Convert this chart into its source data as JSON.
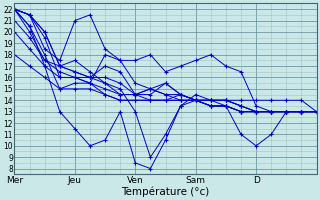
{
  "bg_color": "#cbe8e8",
  "grid_color": "#a0b8b8",
  "line_color": "#0000cc",
  "xlabel": "Température (°c)",
  "ylim": [
    7.5,
    22.5
  ],
  "yticks": [
    8,
    9,
    10,
    11,
    12,
    13,
    14,
    15,
    16,
    17,
    18,
    19,
    20,
    21,
    22
  ],
  "xlim": [
    0,
    20
  ],
  "day_positions": [
    0,
    4,
    8,
    12,
    16,
    20
  ],
  "day_labels": [
    "Mer",
    "Jeu",
    "Ven",
    "Sam",
    "D",
    ""
  ],
  "series": [
    [
      22.0,
      21.5,
      20.0,
      17.0,
      16.5,
      16.0,
      17.0,
      16.5,
      14.5,
      15.0,
      15.5,
      14.5,
      14.0,
      14.0,
      14.0,
      13.5,
      13.0,
      13.0,
      13.0,
      13.0,
      13.0
    ],
    [
      22.0,
      21.5,
      20.0,
      17.0,
      16.5,
      16.0,
      15.5,
      15.0,
      13.0,
      9.0,
      11.0,
      13.5,
      14.0,
      14.0,
      14.0,
      13.5,
      13.0,
      13.0,
      13.0,
      13.0,
      13.0
    ],
    [
      22.0,
      21.5,
      19.5,
      16.0,
      16.0,
      15.5,
      15.0,
      14.5,
      14.5,
      14.5,
      15.5,
      14.5,
      14.0,
      13.5,
      13.5,
      13.0,
      13.0,
      13.0,
      13.0,
      13.0,
      13.0
    ],
    [
      22.0,
      21.5,
      18.5,
      17.5,
      21.0,
      21.5,
      18.5,
      17.5,
      15.5,
      15.0,
      14.5,
      14.0,
      14.0,
      13.5,
      13.5,
      13.0,
      13.0,
      13.0,
      13.0,
      13.0,
      13.0
    ],
    [
      22.0,
      20.5,
      17.0,
      13.0,
      11.5,
      10.0,
      10.5,
      13.0,
      8.5,
      8.0,
      10.5,
      13.5,
      14.5,
      14.0,
      13.5,
      13.0,
      13.0,
      13.0,
      13.0,
      13.0,
      13.0
    ],
    [
      22.0,
      20.0,
      17.5,
      16.5,
      16.0,
      16.0,
      16.0,
      15.5,
      14.5,
      14.0,
      14.0,
      14.5,
      14.0,
      14.0,
      14.0,
      13.5,
      13.0,
      13.0,
      13.0,
      13.0,
      13.0
    ],
    [
      22.0,
      20.5,
      18.0,
      15.0,
      15.5,
      15.5,
      18.0,
      17.5,
      17.5,
      18.0,
      16.5,
      17.0,
      17.5,
      18.0,
      17.0,
      16.5,
      13.5,
      13.0,
      13.0,
      13.0,
      13.0
    ],
    [
      21.0,
      19.5,
      17.5,
      17.0,
      17.5,
      16.5,
      15.5,
      14.5,
      14.5,
      15.0,
      14.5,
      14.5,
      14.0,
      13.5,
      13.5,
      13.0,
      13.0,
      13.0,
      13.0,
      13.0,
      13.0
    ],
    [
      20.0,
      18.5,
      17.0,
      16.0,
      16.0,
      15.5,
      14.5,
      14.0,
      14.0,
      14.0,
      14.0,
      14.0,
      14.0,
      13.5,
      13.5,
      11.0,
      10.0,
      11.0,
      13.0,
      13.0,
      13.0
    ],
    [
      18.0,
      17.0,
      16.0,
      15.0,
      15.0,
      15.0,
      14.5,
      14.0,
      14.0,
      14.0,
      14.0,
      14.0,
      14.0,
      14.0,
      14.0,
      14.0,
      14.0,
      14.0,
      14.0,
      14.0,
      13.0
    ]
  ]
}
